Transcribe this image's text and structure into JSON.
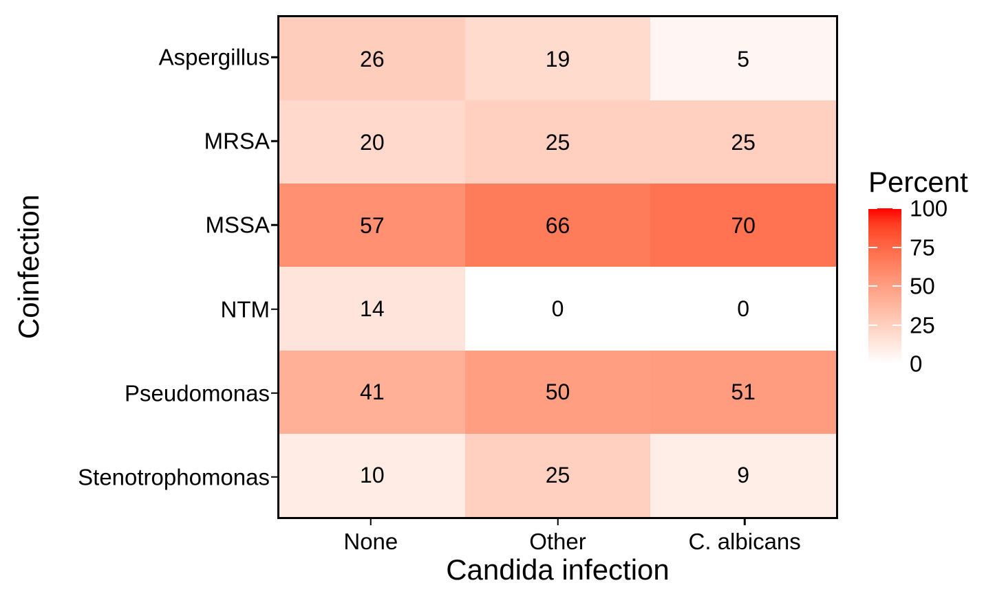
{
  "chart_data": {
    "type": "heatmap",
    "xlabel": "Candida infection",
    "ylabel": "Coinfection",
    "x_categories": [
      "None",
      "Other",
      "C. albicans"
    ],
    "y_categories": [
      "Aspergillus",
      "MRSA",
      "MSSA",
      "NTM",
      "Pseudomonas",
      "Stenotrophomonas"
    ],
    "values": [
      [
        26,
        19,
        5
      ],
      [
        20,
        25,
        25
      ],
      [
        57,
        66,
        70
      ],
      [
        14,
        0,
        0
      ],
      [
        41,
        50,
        51
      ],
      [
        10,
        25,
        9
      ]
    ],
    "value_range": [
      0,
      100
    ],
    "legend": {
      "title": "Percent",
      "position": "right",
      "ticks": [
        100,
        75,
        50,
        25,
        0
      ],
      "low_color": "#FFFFFF",
      "high_color": "#FF0000"
    },
    "layout": {
      "grid": "off",
      "panel_border_color": "#000000",
      "text_color": "#000000",
      "background_color": "#FFFFFF",
      "cell_label_unit": ""
    }
  }
}
